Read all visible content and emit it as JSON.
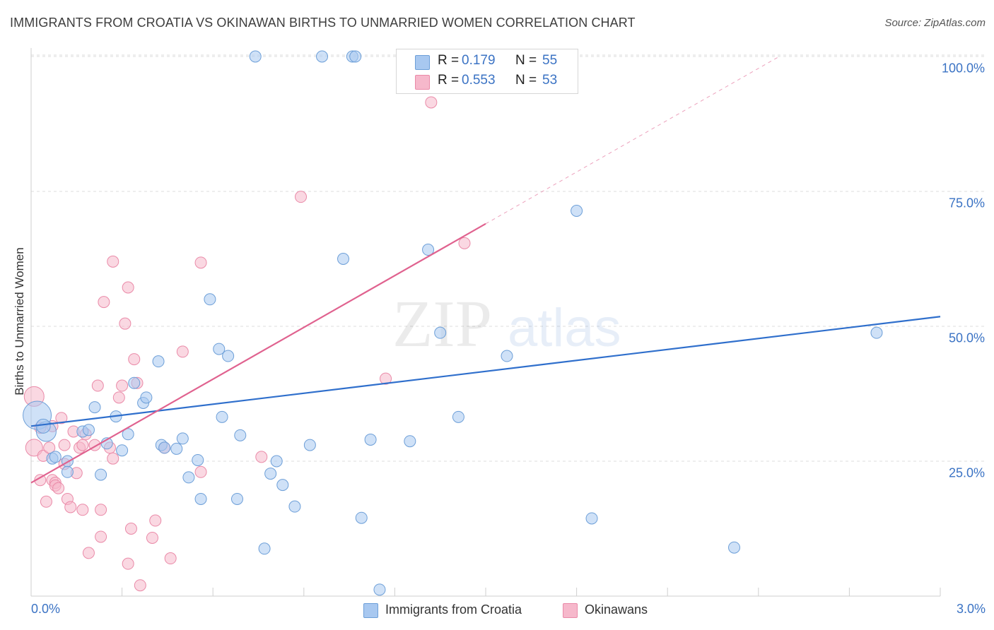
{
  "header": {
    "title": "IMMIGRANTS FROM CROATIA VS OKINAWAN BIRTHS TO UNMARRIED WOMEN CORRELATION CHART",
    "source": "Source: ZipAtlas.com"
  },
  "watermark": {
    "zip": "ZIP",
    "atlas": "atlas"
  },
  "legend": {
    "series1": {
      "r_label": "R =",
      "r_value": "0.179",
      "n_label": "N =",
      "n_value": "55"
    },
    "series2": {
      "r_label": "R =",
      "r_value": "0.553",
      "n_label": "N =",
      "n_value": "53"
    }
  },
  "colors": {
    "blue_fill": "#a8c8f0",
    "blue_stroke": "#6d9fd8",
    "blue_line": "#2f6fcc",
    "pink_fill": "#f6b8cb",
    "pink_stroke": "#ea8aa8",
    "pink_line": "#e0628f",
    "grid": "#dddddd",
    "tick_text": "#3b73c4"
  },
  "chart_data": {
    "type": "scatter",
    "title": "IMMIGRANTS FROM CROATIA VS OKINAWAN BIRTHS TO UNMARRIED WOMEN CORRELATION CHART",
    "xlabel": "",
    "ylabel": "Births to Unmarried Women",
    "xlim": [
      0,
      3.0
    ],
    "ylim": [
      0,
      100
    ],
    "x_tick_labels": [
      "0.0%",
      "3.0%"
    ],
    "y_ticks": [
      25,
      50,
      75,
      100
    ],
    "y_tick_labels": [
      "25.0%",
      "50.0%",
      "75.0%",
      "100.0%"
    ],
    "legend_position": "bottom",
    "series": [
      {
        "name": "Immigrants from Croatia",
        "color": "blue",
        "R": 0.179,
        "N": 55,
        "trend": {
          "x0": 0.0,
          "y0": 31.5,
          "x1": 3.0,
          "y1": 51.8,
          "dashed_extension": false
        },
        "points": [
          [
            0.02,
            33.5,
            20
          ],
          [
            0.05,
            30.5,
            14
          ],
          [
            0.04,
            31.5,
            10
          ],
          [
            0.07,
            25.5,
            8
          ],
          [
            0.08,
            25.8,
            8
          ],
          [
            0.12,
            25.0,
            8
          ],
          [
            0.12,
            23.0,
            8
          ],
          [
            0.17,
            30.5,
            8
          ],
          [
            0.19,
            30.8,
            8
          ],
          [
            0.21,
            35.0,
            8
          ],
          [
            0.23,
            22.5,
            8
          ],
          [
            0.25,
            28.3,
            8
          ],
          [
            0.28,
            33.3,
            8
          ],
          [
            0.3,
            27.0,
            8
          ],
          [
            0.32,
            30.0,
            8
          ],
          [
            0.34,
            39.5,
            8
          ],
          [
            0.37,
            35.8,
            8
          ],
          [
            0.38,
            36.8,
            8
          ],
          [
            0.42,
            43.5,
            8
          ],
          [
            0.43,
            28.0,
            8
          ],
          [
            0.44,
            27.5,
            8
          ],
          [
            0.48,
            27.3,
            8
          ],
          [
            0.5,
            29.2,
            8
          ],
          [
            0.52,
            22.0,
            8
          ],
          [
            0.55,
            25.2,
            8
          ],
          [
            0.56,
            18.0,
            8
          ],
          [
            0.59,
            55.0,
            8
          ],
          [
            0.62,
            45.8,
            8
          ],
          [
            0.65,
            44.5,
            8
          ],
          [
            0.63,
            33.2,
            8
          ],
          [
            0.68,
            18.0,
            8
          ],
          [
            0.69,
            29.8,
            8
          ],
          [
            0.74,
            100.0,
            8
          ],
          [
            0.77,
            8.8,
            8
          ],
          [
            0.79,
            22.7,
            8
          ],
          [
            0.81,
            25.0,
            8
          ],
          [
            0.83,
            20.6,
            8
          ],
          [
            0.87,
            16.6,
            8
          ],
          [
            0.92,
            28.0,
            8
          ],
          [
            0.96,
            100.0,
            8
          ],
          [
            1.03,
            62.5,
            8
          ],
          [
            1.06,
            100.0,
            8
          ],
          [
            1.07,
            100.0,
            8
          ],
          [
            1.09,
            14.5,
            8
          ],
          [
            1.12,
            29.0,
            8
          ],
          [
            1.15,
            1.2,
            8
          ],
          [
            1.25,
            28.7,
            8
          ],
          [
            1.31,
            64.2,
            8
          ],
          [
            1.35,
            48.8,
            8
          ],
          [
            1.41,
            33.2,
            8
          ],
          [
            1.57,
            44.5,
            8
          ],
          [
            1.8,
            71.4,
            8
          ],
          [
            1.85,
            14.4,
            8
          ],
          [
            2.32,
            9.0,
            8
          ],
          [
            2.79,
            48.8,
            8
          ]
        ]
      },
      {
        "name": "Okinawans",
        "color": "pink",
        "R": 0.553,
        "N": 53,
        "trend": {
          "x0": 0.0,
          "y0": 21.0,
          "x1": 1.5,
          "y1": 69.0,
          "dashed_to": [
            3.0,
            117.0
          ]
        },
        "points": [
          [
            0.01,
            37.0,
            14
          ],
          [
            0.01,
            27.5,
            12
          ],
          [
            0.03,
            31.2,
            8
          ],
          [
            0.03,
            21.5,
            8
          ],
          [
            0.04,
            26.0,
            8
          ],
          [
            0.05,
            17.5,
            8
          ],
          [
            0.06,
            27.5,
            8
          ],
          [
            0.07,
            31.5,
            8
          ],
          [
            0.07,
            21.5,
            8
          ],
          [
            0.08,
            21.0,
            8
          ],
          [
            0.08,
            20.5,
            8
          ],
          [
            0.09,
            20.0,
            8
          ],
          [
            0.1,
            33.0,
            8
          ],
          [
            0.11,
            24.5,
            8
          ],
          [
            0.11,
            28.0,
            8
          ],
          [
            0.12,
            18.0,
            8
          ],
          [
            0.13,
            16.5,
            8
          ],
          [
            0.14,
            30.5,
            8
          ],
          [
            0.15,
            22.8,
            8
          ],
          [
            0.16,
            27.5,
            8
          ],
          [
            0.17,
            16.0,
            8
          ],
          [
            0.17,
            28.0,
            8
          ],
          [
            0.18,
            30.0,
            8
          ],
          [
            0.19,
            8.0,
            8
          ],
          [
            0.21,
            28.0,
            8
          ],
          [
            0.22,
            39.0,
            8
          ],
          [
            0.23,
            16.0,
            8
          ],
          [
            0.23,
            11.0,
            8
          ],
          [
            0.24,
            54.5,
            8
          ],
          [
            0.26,
            27.5,
            8
          ],
          [
            0.27,
            62.0,
            8
          ],
          [
            0.27,
            25.5,
            8
          ],
          [
            0.29,
            36.8,
            8
          ],
          [
            0.3,
            39.0,
            8
          ],
          [
            0.31,
            50.5,
            8
          ],
          [
            0.32,
            6.0,
            8
          ],
          [
            0.32,
            57.2,
            8
          ],
          [
            0.33,
            12.5,
            8
          ],
          [
            0.34,
            43.9,
            8
          ],
          [
            0.35,
            39.5,
            8
          ],
          [
            0.36,
            2.0,
            8
          ],
          [
            0.4,
            10.8,
            8
          ],
          [
            0.41,
            14.0,
            8
          ],
          [
            0.44,
            27.5,
            8
          ],
          [
            0.46,
            7.0,
            8
          ],
          [
            0.5,
            45.3,
            8
          ],
          [
            0.56,
            61.8,
            8
          ],
          [
            0.56,
            23.0,
            8
          ],
          [
            0.76,
            25.8,
            8
          ],
          [
            0.89,
            74.0,
            8
          ],
          [
            1.17,
            40.3,
            8
          ],
          [
            1.32,
            91.5,
            8
          ],
          [
            1.43,
            65.4,
            8
          ]
        ]
      }
    ]
  },
  "bottom_legend": {
    "series1_label": "Immigrants from Croatia",
    "series2_label": "Okinawans"
  }
}
